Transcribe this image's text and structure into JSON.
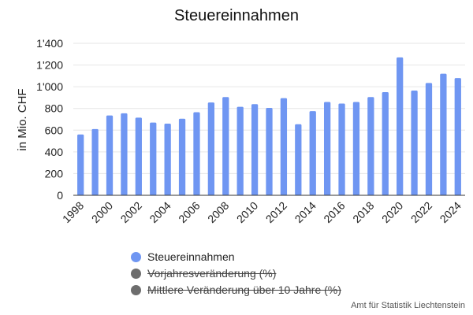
{
  "chart_data": {
    "type": "bar",
    "title": "Steuereinnahmen",
    "ylabel": "in Mio. CHF",
    "xlabel": "",
    "ylim": [
      0,
      1400
    ],
    "yticks": [
      "0",
      "200",
      "400",
      "600",
      "800",
      "1'000",
      "1'200",
      "1'400"
    ],
    "ytick_values": [
      0,
      200,
      400,
      600,
      800,
      1000,
      1200,
      1400
    ],
    "categories": [
      "1998",
      "1999",
      "2000",
      "2001",
      "2002",
      "2003",
      "2004",
      "2005",
      "2006",
      "2007",
      "2008",
      "2009",
      "2010",
      "2011",
      "2012",
      "2013",
      "2014",
      "2015",
      "2016",
      "2017",
      "2018",
      "2019",
      "2020",
      "2021",
      "2022",
      "2023",
      "2024"
    ],
    "xtick_labels": [
      "1998",
      "2000",
      "2002",
      "2004",
      "2006",
      "2008",
      "2010",
      "2012",
      "2014",
      "2016",
      "2018",
      "2020",
      "2022",
      "2024"
    ],
    "series": [
      {
        "name": "Steuereinnahmen",
        "color": "#6f96f2",
        "values": [
          560,
          610,
          735,
          755,
          715,
          670,
          660,
          705,
          765,
          855,
          905,
          815,
          840,
          805,
          895,
          655,
          775,
          860,
          845,
          860,
          905,
          950,
          1270,
          965,
          1035,
          1120,
          1080
        ]
      }
    ],
    "grid": true,
    "legend_position": "bottom",
    "legend": [
      {
        "label": "Steuereinnahmen",
        "color": "#6f96f2",
        "active": true
      },
      {
        "label": "Vorjahresveränderung (%)",
        "color": "#6d6d6d",
        "active": false
      },
      {
        "label": "Mittlere Veränderung über 10 Jahre (%)",
        "color": "#6d6d6d",
        "active": false
      }
    ]
  },
  "credit": "Amt für Statistik Liechtenstein"
}
